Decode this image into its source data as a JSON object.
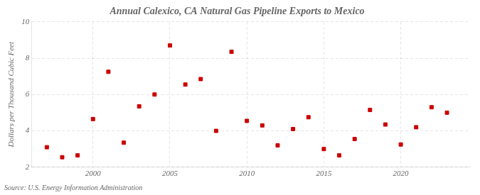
{
  "chart_data": {
    "type": "scatter",
    "title": "Annual Calexico, CA Natural Gas Pipeline Exports to Mexico",
    "y_label": "Dollars per Thousand Cubic Feet",
    "source": "Source: U.S. Energy Information Administration",
    "x": [
      1997,
      1998,
      1999,
      2000,
      2001,
      2002,
      2003,
      2004,
      2005,
      2006,
      2007,
      2008,
      2009,
      2010,
      2011,
      2012,
      2013,
      2014,
      2015,
      2016,
      2017,
      2018,
      2019,
      2020,
      2021,
      2022,
      2023
    ],
    "values": [
      3.1,
      2.55,
      2.65,
      4.65,
      7.25,
      3.35,
      5.35,
      6.0,
      8.7,
      6.55,
      6.85,
      4.0,
      8.35,
      4.55,
      4.3,
      3.2,
      4.1,
      4.75,
      3.0,
      2.65,
      3.55,
      5.15,
      4.35,
      3.25,
      4.2,
      5.3,
      5.0
    ],
    "color": "#cc0000",
    "marker": "square",
    "xlim": [
      1996.0,
      2024.5
    ],
    "xticks": [
      2000,
      2005,
      2010,
      2015,
      2020
    ],
    "ylim": [
      2,
      10
    ],
    "yticks": [
      2,
      4,
      6,
      8,
      10
    ],
    "grid": true
  }
}
